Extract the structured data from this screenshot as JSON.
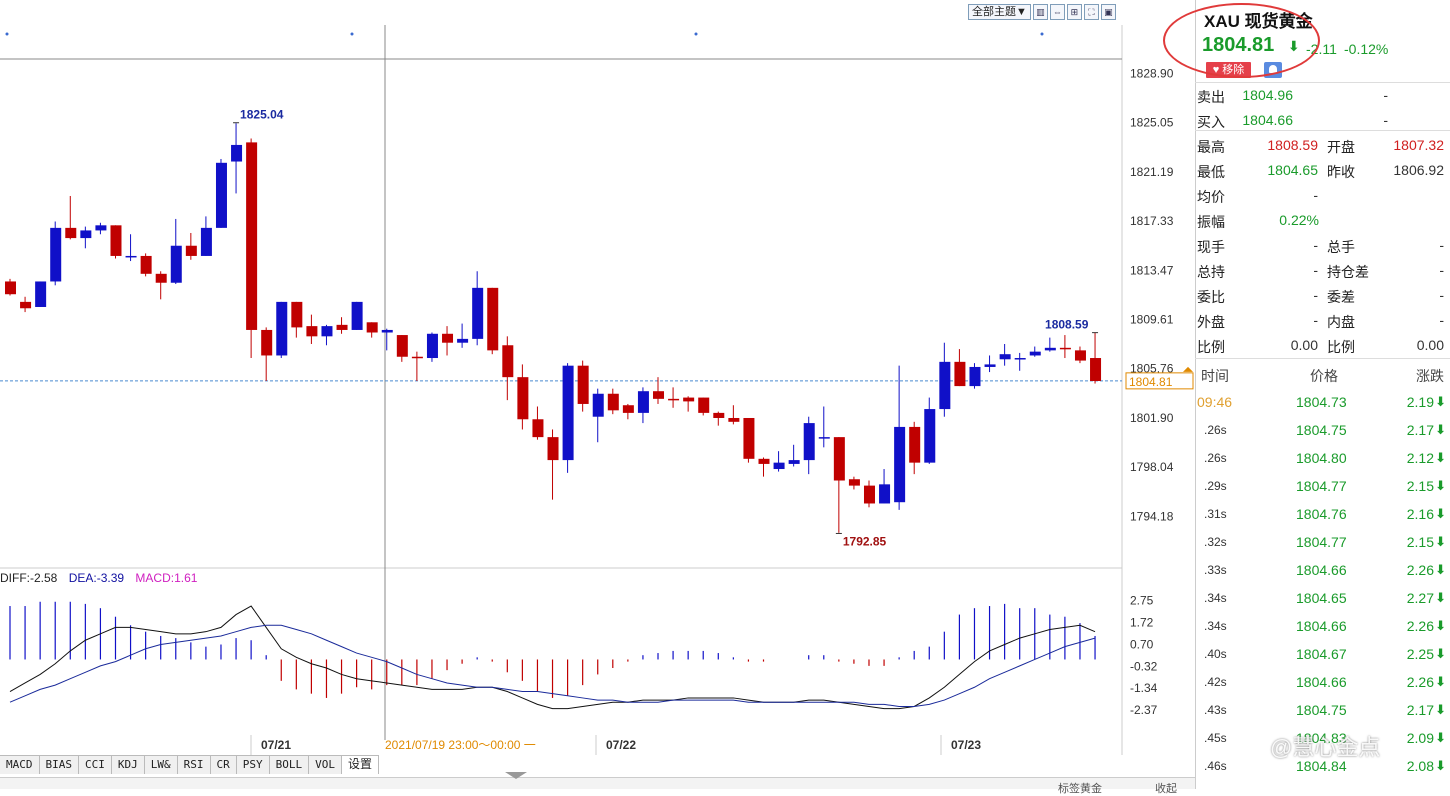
{
  "toolbar": {
    "theme_select": "全部主题▼",
    "icons": [
      "kline-icon",
      "pan-icon",
      "zoom-icon",
      "fullscreen-icon",
      "restore-icon"
    ]
  },
  "chart_data": {
    "type": "candlestick",
    "ylim": [
      1790.3,
      1832.7
    ],
    "y_ticks": [
      "1828.90",
      "1825.05",
      "1821.19",
      "1817.33",
      "1813.47",
      "1809.61",
      "1805.76",
      "1801.90",
      "1798.04",
      "1794.18"
    ],
    "current_price": "1804.81",
    "annotations": {
      "high": "1825.04",
      "low": "1792.85",
      "recent_high": "1808.59"
    },
    "x_labels": [
      "07/21",
      "07/22",
      "07/23"
    ],
    "crosshair_label": "2021/07/19 23:00～00:00 一",
    "candles": [
      [
        1812.6,
        1811.6,
        1812.8,
        1811.5
      ],
      [
        1811.0,
        1810.5,
        1811.4,
        1810.2
      ],
      [
        1810.6,
        1812.6,
        1812.6,
        1810.6
      ],
      [
        1812.6,
        1816.8,
        1817.3,
        1812.3
      ],
      [
        1816.8,
        1816.0,
        1819.3,
        1815.9
      ],
      [
        1816.0,
        1816.6,
        1816.9,
        1815.2
      ],
      [
        1816.6,
        1817.0,
        1817.2,
        1816.3
      ],
      [
        1817.0,
        1814.6,
        1817.0,
        1814.4
      ],
      [
        1814.6,
        1814.6,
        1816.3,
        1814.2
      ],
      [
        1814.6,
        1813.2,
        1814.8,
        1813.0
      ],
      [
        1813.2,
        1812.5,
        1813.4,
        1811.2
      ],
      [
        1812.5,
        1815.4,
        1817.5,
        1812.4
      ],
      [
        1815.4,
        1814.6,
        1816.4,
        1814.3
      ],
      [
        1814.6,
        1816.8,
        1817.7,
        1814.6
      ],
      [
        1816.8,
        1821.9,
        1822.2,
        1816.8
      ],
      [
        1822.0,
        1823.3,
        1825.0,
        1819.5
      ],
      [
        1823.5,
        1808.8,
        1823.8,
        1806.6
      ],
      [
        1808.8,
        1806.8,
        1809.0,
        1804.8
      ],
      [
        1806.8,
        1811.0,
        1811.0,
        1806.6
      ],
      [
        1811.0,
        1809.0,
        1811.0,
        1808.2
      ],
      [
        1809.1,
        1808.3,
        1810.0,
        1807.7
      ],
      [
        1808.3,
        1809.1,
        1809.2,
        1807.6
      ],
      [
        1809.2,
        1808.8,
        1809.8,
        1808.5
      ],
      [
        1808.8,
        1811.0,
        1811.0,
        1808.8
      ],
      [
        1809.4,
        1808.6,
        1809.4,
        1808.2
      ],
      [
        1808.6,
        1808.8,
        1808.9,
        1807.2
      ],
      [
        1808.4,
        1806.7,
        1808.4,
        1806.3
      ],
      [
        1806.7,
        1806.6,
        1807.1,
        1804.8
      ],
      [
        1806.6,
        1808.5,
        1808.6,
        1806.3
      ],
      [
        1808.5,
        1807.8,
        1809.1,
        1806.8
      ],
      [
        1807.8,
        1808.1,
        1809.3,
        1807.4
      ],
      [
        1808.1,
        1812.1,
        1813.4,
        1807.6
      ],
      [
        1812.1,
        1807.2,
        1812.1,
        1806.9
      ],
      [
        1807.6,
        1805.1,
        1808.3,
        1803.3
      ],
      [
        1805.1,
        1801.8,
        1806.1,
        1801.0
      ],
      [
        1801.8,
        1800.4,
        1802.8,
        1800.2
      ],
      [
        1800.4,
        1798.6,
        1801.0,
        1795.5
      ],
      [
        1798.6,
        1806.0,
        1806.2,
        1797.6
      ],
      [
        1806.0,
        1803.0,
        1806.4,
        1802.4
      ],
      [
        1802.0,
        1803.8,
        1804.2,
        1800.0
      ],
      [
        1803.8,
        1802.5,
        1804.2,
        1802.2
      ],
      [
        1802.9,
        1802.3,
        1803.0,
        1801.8
      ],
      [
        1802.3,
        1804.0,
        1804.3,
        1801.5
      ],
      [
        1804.0,
        1803.4,
        1805.1,
        1803.0
      ],
      [
        1803.4,
        1803.3,
        1804.3,
        1802.7
      ],
      [
        1803.5,
        1803.2,
        1803.6,
        1802.4
      ],
      [
        1803.5,
        1802.3,
        1803.5,
        1802.1
      ],
      [
        1802.3,
        1801.9,
        1802.4,
        1801.3
      ],
      [
        1801.9,
        1801.6,
        1802.9,
        1801.4
      ],
      [
        1801.9,
        1798.7,
        1801.9,
        1798.4
      ],
      [
        1798.7,
        1798.3,
        1798.8,
        1797.3
      ],
      [
        1797.9,
        1798.4,
        1799.3,
        1797.7
      ],
      [
        1798.3,
        1798.6,
        1799.8,
        1798.1
      ],
      [
        1798.6,
        1801.5,
        1802.0,
        1797.5
      ],
      [
        1800.4,
        1800.4,
        1802.8,
        1799.6
      ],
      [
        1800.4,
        1797.0,
        1800.4,
        1792.9
      ],
      [
        1797.1,
        1796.6,
        1797.3,
        1796.3
      ],
      [
        1796.6,
        1795.2,
        1797.0,
        1794.9
      ],
      [
        1795.2,
        1796.7,
        1797.9,
        1795.2
      ],
      [
        1795.3,
        1801.2,
        1806.0,
        1794.7
      ],
      [
        1801.2,
        1798.4,
        1801.6,
        1797.5
      ],
      [
        1798.4,
        1802.6,
        1803.5,
        1798.3
      ],
      [
        1802.6,
        1806.3,
        1807.8,
        1802.0
      ],
      [
        1806.3,
        1804.4,
        1807.3,
        1804.4
      ],
      [
        1804.4,
        1805.9,
        1806.2,
        1804.2
      ],
      [
        1805.9,
        1806.1,
        1806.8,
        1805.5
      ],
      [
        1806.5,
        1806.9,
        1807.7,
        1806.0
      ],
      [
        1806.5,
        1806.6,
        1807.0,
        1805.6
      ],
      [
        1806.8,
        1807.1,
        1807.5,
        1806.7
      ],
      [
        1807.2,
        1807.4,
        1808.2,
        1807.1
      ],
      [
        1807.4,
        1807.3,
        1808.4,
        1806.6
      ],
      [
        1807.2,
        1806.4,
        1807.5,
        1806.2
      ],
      [
        1806.6,
        1804.8,
        1808.6,
        1804.6
      ]
    ],
    "macd": {
      "legend": {
        "diff": "DIFF:-2.58",
        "dea": "DEA:-3.39",
        "macd": "MACD:1.61"
      },
      "ylim": [
        -3.3,
        3.25
      ],
      "y_ticks": [
        "2.75",
        "1.72",
        "0.70",
        "-0.32",
        "-1.34",
        "-2.37"
      ],
      "hist": [
        2.5,
        2.5,
        2.7,
        2.7,
        2.7,
        2.6,
        2.4,
        2.0,
        1.6,
        1.3,
        1.1,
        1.0,
        0.8,
        0.6,
        0.7,
        1.0,
        0.9,
        0.2,
        -1.0,
        -1.4,
        -1.6,
        -1.8,
        -1.6,
        -1.3,
        -1.4,
        -1.2,
        -1.2,
        -1.2,
        -0.9,
        -0.5,
        -0.2,
        0.1,
        -0.1,
        -0.6,
        -1.0,
        -1.5,
        -1.8,
        -1.7,
        -1.2,
        -0.7,
        -0.4,
        -0.1,
        0.2,
        0.3,
        0.4,
        0.4,
        0.4,
        0.3,
        0.1,
        -0.1,
        -0.1,
        0.0,
        0.0,
        0.2,
        0.2,
        -0.1,
        -0.2,
        -0.3,
        -0.3,
        0.1,
        0.4,
        0.6,
        1.3,
        2.1,
        2.4,
        2.5,
        2.6,
        2.4,
        2.4,
        2.1,
        2.0,
        1.7,
        1.1
      ],
      "diff": [
        -1.5,
        -1.1,
        -0.7,
        -0.2,
        0.4,
        0.9,
        1.2,
        1.5,
        1.5,
        1.4,
        1.3,
        1.2,
        1.2,
        1.3,
        1.5,
        2.1,
        2.5,
        1.5,
        0.5,
        0.1,
        -0.2,
        -0.4,
        -0.7,
        -0.9,
        -1.0,
        -1.1,
        -1.2,
        -1.3,
        -1.4,
        -1.4,
        -1.4,
        -1.3,
        -1.3,
        -1.5,
        -1.8,
        -2.1,
        -2.3,
        -2.3,
        -2.2,
        -2.1,
        -2.0,
        -2.0,
        -1.9,
        -1.9,
        -1.9,
        -1.8,
        -1.8,
        -1.8,
        -1.8,
        -1.9,
        -2.0,
        -2.0,
        -2.0,
        -1.9,
        -1.9,
        -2.0,
        -2.1,
        -2.2,
        -2.3,
        -2.3,
        -2.2,
        -1.8,
        -1.3,
        -0.7,
        -0.1,
        0.4,
        0.7,
        1.0,
        1.2,
        1.4,
        1.5,
        1.6,
        1.3
      ],
      "dea": [
        -2.0,
        -1.7,
        -1.4,
        -1.2,
        -0.9,
        -0.6,
        -0.3,
        -0.1,
        0.2,
        0.5,
        0.7,
        0.8,
        0.9,
        1.0,
        1.1,
        1.3,
        1.5,
        1.6,
        1.6,
        1.4,
        1.2,
        0.9,
        0.6,
        0.3,
        0.1,
        -0.1,
        -0.4,
        -0.7,
        -0.9,
        -1.1,
        -1.2,
        -1.3,
        -1.3,
        -1.4,
        -1.5,
        -1.5,
        -1.6,
        -1.7,
        -1.8,
        -1.9,
        -1.9,
        -2.0,
        -2.0,
        -2.0,
        -1.9,
        -1.9,
        -1.9,
        -1.9,
        -1.9,
        -2.0,
        -2.0,
        -2.0,
        -2.0,
        -2.0,
        -2.0,
        -2.0,
        -2.0,
        -2.1,
        -2.1,
        -2.2,
        -2.2,
        -2.1,
        -1.9,
        -1.6,
        -1.3,
        -0.9,
        -0.6,
        -0.3,
        0.0,
        0.3,
        0.6,
        0.8,
        1.0
      ]
    }
  },
  "indicator_tabs": [
    "MACD",
    "BIAS",
    "CCI",
    "KDJ",
    "LW&",
    "RSI",
    "CR",
    "PSY",
    "BOLL",
    "VOL",
    "设置"
  ],
  "bottom": {
    "left_text": "标签黄金",
    "right_text": "收起"
  },
  "quote": {
    "title": "XAU 现货黄金",
    "price": "1804.81",
    "arrow": "⬇",
    "change": "-2.11",
    "change_pct": "-0.12%",
    "remove_label": "♥ 移除",
    "rows": [
      {
        "label": "卖出",
        "value": "1804.96",
        "label2": "",
        "value2": "-",
        "color": "green"
      },
      {
        "label": "买入",
        "value": "1804.66",
        "label2": "",
        "value2": "-",
        "color": "green"
      },
      {
        "label": "最高",
        "value": "1808.59",
        "label2": "开盘",
        "value2": "1807.32",
        "color": "red",
        "color2": "red"
      },
      {
        "label": "最低",
        "value": "1804.65",
        "label2": "昨收",
        "value2": "1806.92",
        "color": "green",
        "color2": "gray"
      },
      {
        "label": "均价",
        "value": "-",
        "label2": "",
        "value2": "",
        "color": "gray"
      },
      {
        "label": "振幅",
        "value": "0.22%",
        "label2": "",
        "value2": "",
        "color": "green"
      },
      {
        "label": "现手",
        "value": "-",
        "label2": "总手",
        "value2": "-",
        "color": "gray",
        "color2": "gray"
      },
      {
        "label": "总持",
        "value": "-",
        "label2": "持仓差",
        "value2": "-",
        "color": "gray",
        "color2": "gray"
      },
      {
        "label": "委比",
        "value": "-",
        "label2": "委差",
        "value2": "-",
        "color": "gray",
        "color2": "gray"
      },
      {
        "label": "外盘",
        "value": "-",
        "label2": "内盘",
        "value2": "-",
        "color": "gray",
        "color2": "gray"
      },
      {
        "label": "比例",
        "value": "0.00",
        "label2": "比例",
        "value2": "0.00",
        "color": "gray",
        "color2": "gray"
      }
    ]
  },
  "ticks_header": {
    "time": "时间",
    "price": "价格",
    "change": "涨跌"
  },
  "ticks": [
    {
      "t": "09:46",
      "p": "1804.73",
      "d": "2.19"
    },
    {
      "t": ".26s",
      "p": "1804.75",
      "d": "2.17"
    },
    {
      "t": ".26s",
      "p": "1804.80",
      "d": "2.12"
    },
    {
      "t": ".29s",
      "p": "1804.77",
      "d": "2.15"
    },
    {
      "t": ".31s",
      "p": "1804.76",
      "d": "2.16"
    },
    {
      "t": ".32s",
      "p": "1804.77",
      "d": "2.15"
    },
    {
      "t": ".33s",
      "p": "1804.66",
      "d": "2.26"
    },
    {
      "t": ".34s",
      "p": "1804.65",
      "d": "2.27"
    },
    {
      "t": ".34s",
      "p": "1804.66",
      "d": "2.26"
    },
    {
      "t": ".40s",
      "p": "1804.67",
      "d": "2.25"
    },
    {
      "t": ".42s",
      "p": "1804.66",
      "d": "2.26"
    },
    {
      "t": ".43s",
      "p": "1804.75",
      "d": "2.17"
    },
    {
      "t": ".45s",
      "p": "1804.83",
      "d": "2.09"
    },
    {
      "t": ".46s",
      "p": "1804.84",
      "d": "2.08"
    }
  ],
  "watermark": "@慧心金点",
  "colors": {
    "up": "#1010c8",
    "down": "#c00000",
    "green": "#1a9b2b",
    "red": "#d02020",
    "accent": "#e08a00"
  }
}
